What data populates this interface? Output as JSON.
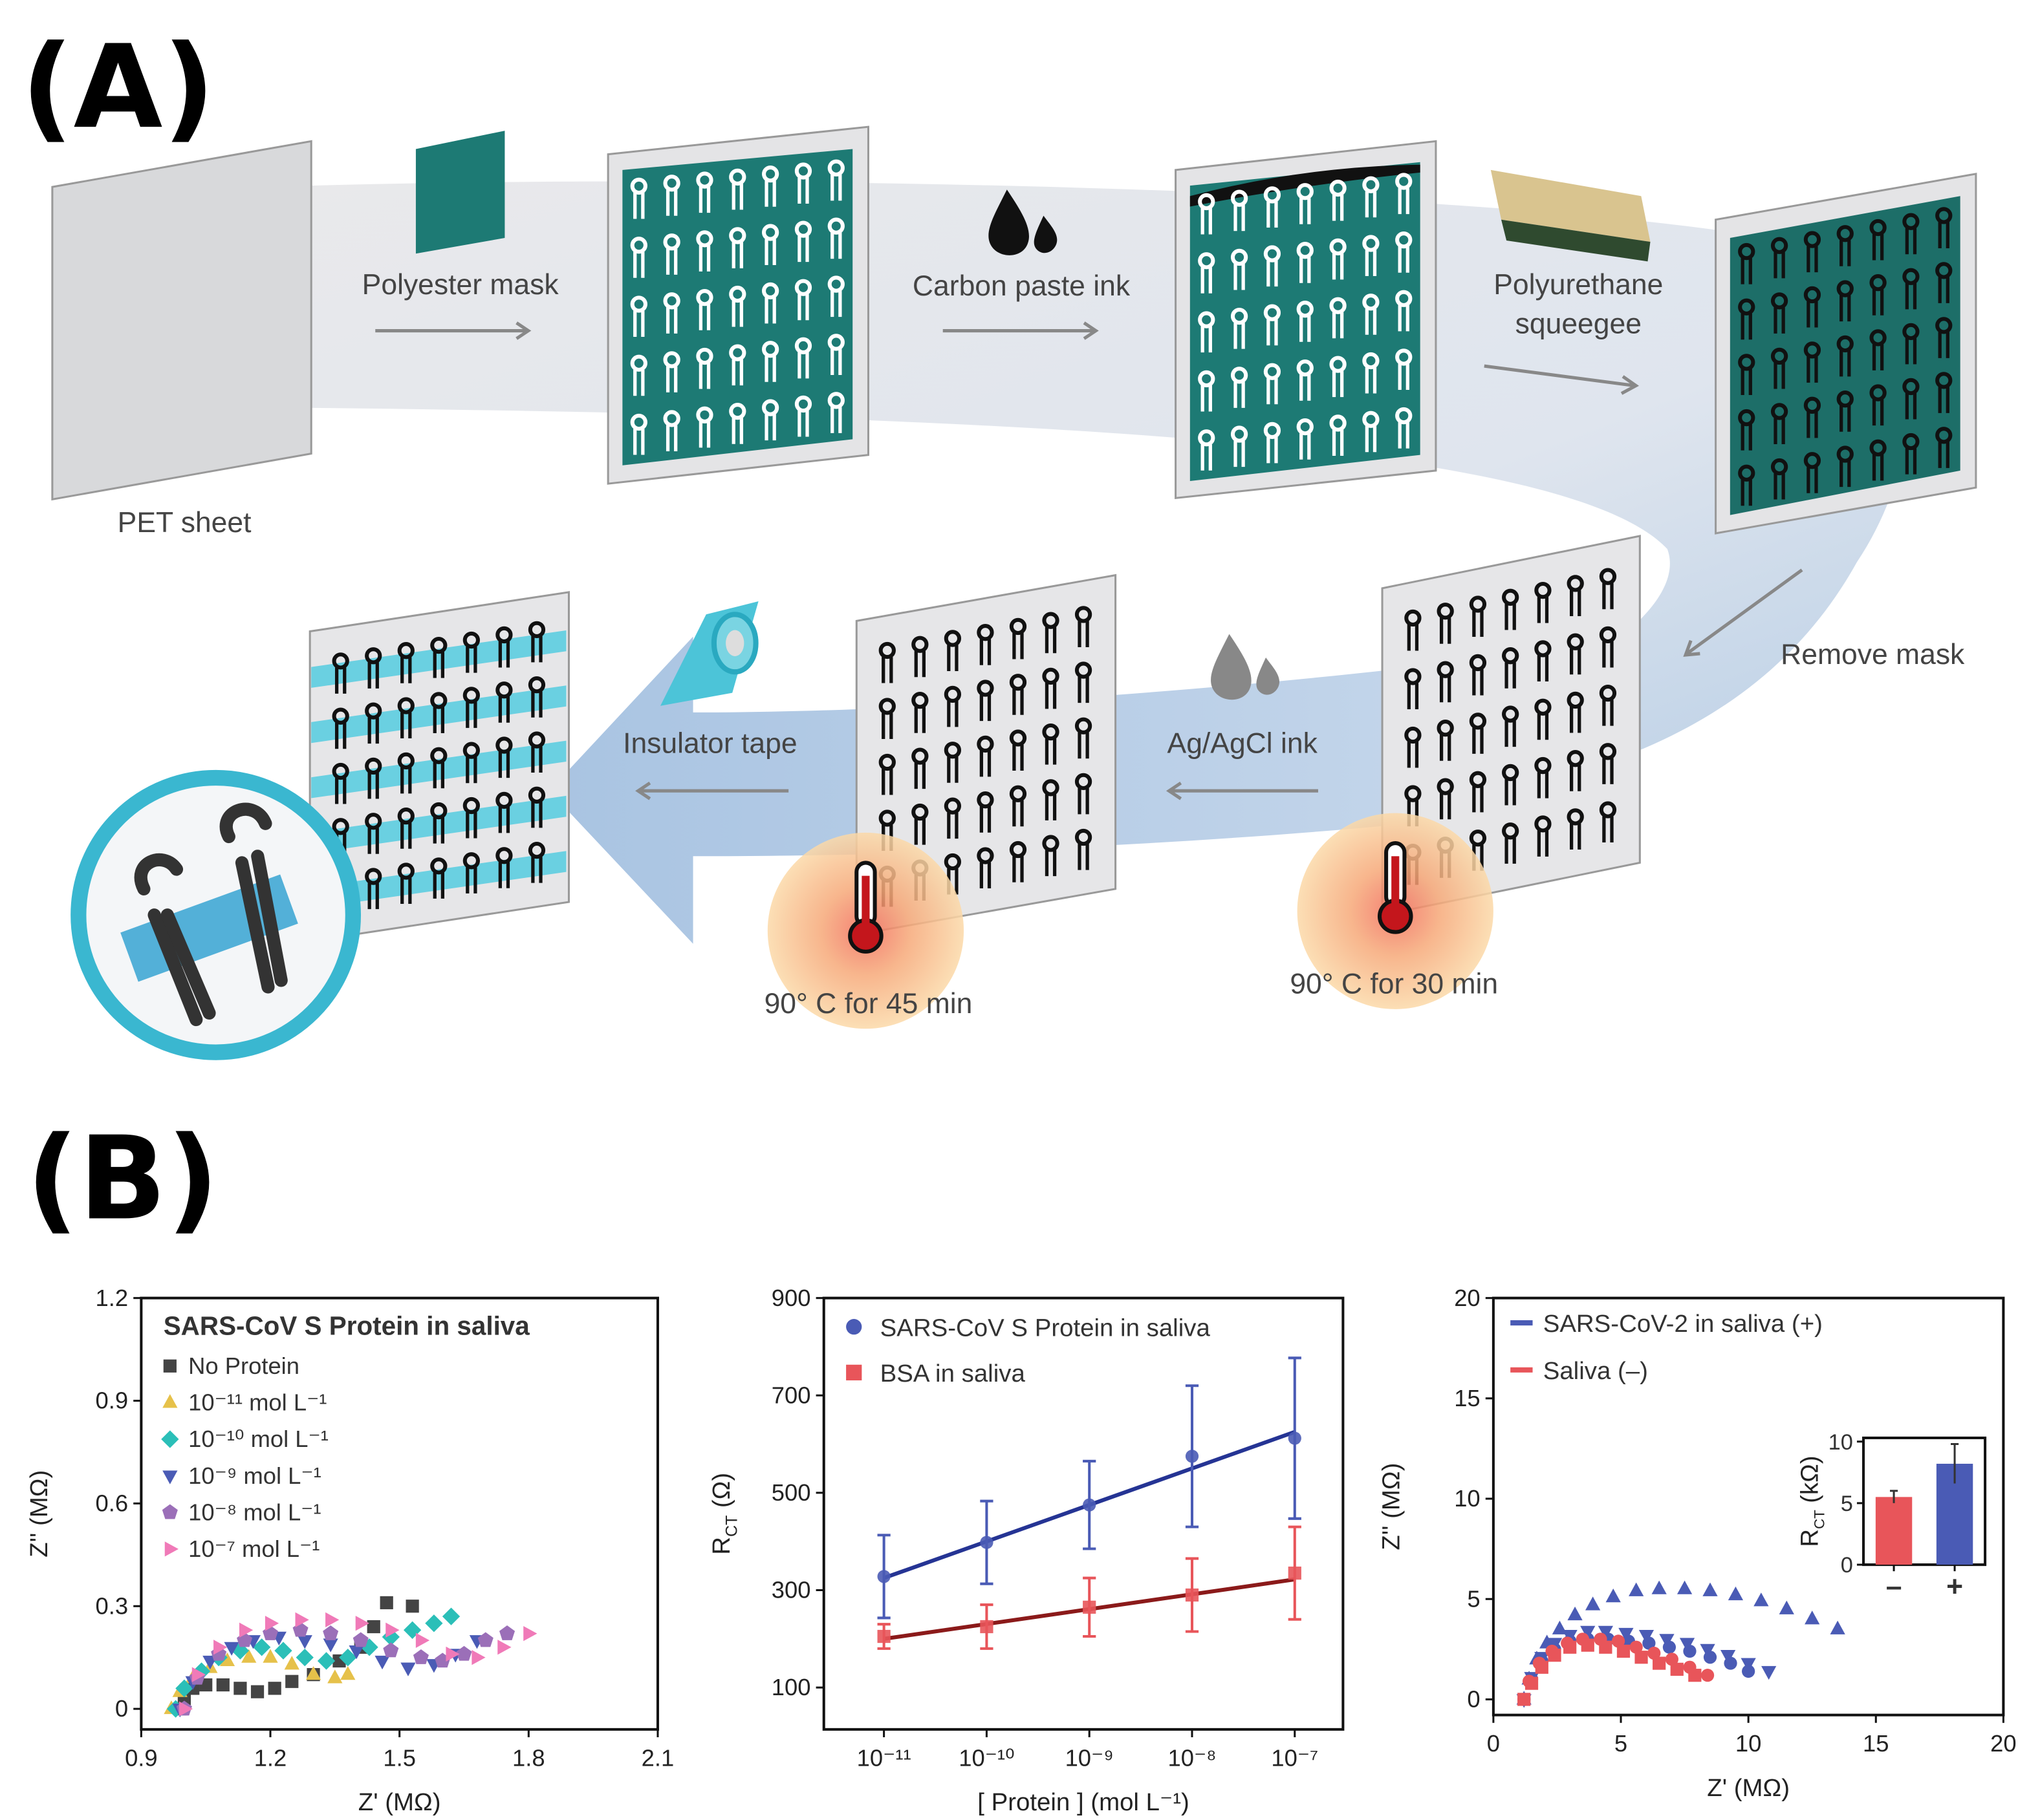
{
  "panel_labels": [
    "(A)",
    "(B)"
  ],
  "diagram": {
    "steps": {
      "pet_sheet": "PET sheet",
      "polyester_mask": "Polyester mask",
      "carbon_ink": "Carbon paste ink",
      "squeegee": [
        "Polyurethane",
        "squeegee"
      ],
      "remove_mask": "Remove mask",
      "agcl_ink": "Ag/AgCl ink",
      "insulator_tape": "Insulator tape",
      "cure_30": "90° C for 30 min",
      "cure_45": "90° C for 45 min"
    }
  },
  "chart_data": [
    {
      "type": "scatter",
      "xlabel": "Z' (MΩ)",
      "ylabel": "Z'' (MΩ)",
      "legend_title": "SARS-CoV S Protein in saliva",
      "legend": "upper left",
      "xlim": [
        0.9,
        2.1
      ],
      "ylim": [
        -0.06,
        1.2
      ],
      "xticks": [
        0.9,
        1.2,
        1.5,
        1.8,
        2.1
      ],
      "yticks": [
        0,
        0.3,
        0.6,
        0.9,
        1.2
      ],
      "series": [
        {
          "name": "No Protein",
          "color": "#444444",
          "marker": "square",
          "x": [
            0.99,
            1.0,
            1.02,
            1.05,
            1.09,
            1.13,
            1.17,
            1.21,
            1.25,
            1.3,
            1.36,
            1.41,
            1.44,
            1.47,
            1.53
          ],
          "values": [
            0.0,
            0.03,
            0.06,
            0.07,
            0.07,
            0.06,
            0.05,
            0.06,
            0.08,
            0.1,
            0.14,
            0.18,
            0.24,
            0.31,
            0.3
          ]
        },
        {
          "name": "10⁻¹¹ mol L⁻¹",
          "color": "#e6c14a",
          "marker": "triangle",
          "x": [
            0.97,
            0.99,
            1.02,
            1.06,
            1.1,
            1.15,
            1.2,
            1.25,
            1.3,
            1.35,
            1.38
          ],
          "values": [
            0,
            0.05,
            0.09,
            0.12,
            0.14,
            0.15,
            0.15,
            0.13,
            0.1,
            0.09,
            0.1
          ]
        },
        {
          "name": "10⁻¹⁰ mol L⁻¹",
          "color": "#2bbfb8",
          "marker": "diamond",
          "x": [
            0.98,
            1.0,
            1.04,
            1.08,
            1.13,
            1.18,
            1.23,
            1.28,
            1.33,
            1.38,
            1.43,
            1.48,
            1.53,
            1.58,
            1.62
          ],
          "values": [
            0,
            0.06,
            0.11,
            0.15,
            0.17,
            0.18,
            0.17,
            0.15,
            0.14,
            0.15,
            0.18,
            0.21,
            0.23,
            0.25,
            0.27
          ]
        },
        {
          "name": "10⁻⁹  mol L⁻¹",
          "color": "#4a5bb5",
          "marker": "triangle-down",
          "x": [
            0.99,
            1.02,
            1.06,
            1.11,
            1.16,
            1.22,
            1.28,
            1.34,
            1.4,
            1.46,
            1.52,
            1.58,
            1.63,
            1.68
          ],
          "values": [
            0,
            0.08,
            0.14,
            0.18,
            0.2,
            0.21,
            0.2,
            0.19,
            0.17,
            0.14,
            0.12,
            0.13,
            0.16,
            0.2
          ]
        },
        {
          "name": "10⁻⁸  mol L⁻¹",
          "color": "#9b6fb8",
          "marker": "pentagon",
          "x": [
            1.0,
            1.03,
            1.08,
            1.14,
            1.2,
            1.27,
            1.34,
            1.41,
            1.48,
            1.55,
            1.6,
            1.65,
            1.7,
            1.75
          ],
          "values": [
            0,
            0.09,
            0.16,
            0.2,
            0.22,
            0.23,
            0.22,
            0.2,
            0.17,
            0.15,
            0.14,
            0.16,
            0.2,
            0.22
          ]
        },
        {
          "name": "10⁻⁷  mol L⁻¹",
          "color": "#f07ab8",
          "marker": "triangle-right",
          "x": [
            1.0,
            1.03,
            1.08,
            1.14,
            1.2,
            1.27,
            1.34,
            1.41,
            1.48,
            1.55,
            1.62,
            1.68,
            1.74,
            1.8
          ],
          "values": [
            0,
            0.1,
            0.18,
            0.23,
            0.25,
            0.26,
            0.26,
            0.25,
            0.23,
            0.2,
            0.16,
            0.15,
            0.18,
            0.22
          ]
        }
      ]
    },
    {
      "type": "scatter",
      "xscale": "log",
      "xlabel": "[ Protein ] (mol L⁻¹)",
      "ylabel": {
        "main": "R",
        "sub": "CT",
        "unit": "(Ω)"
      },
      "legend": "upper left",
      "xlim": [
        2.6e-12,
        2.95e-07
      ],
      "ylim": [
        14,
        900
      ],
      "xticks": [
        {
          "value": 1e-11,
          "label": "10⁻¹¹"
        },
        {
          "value": 1e-10,
          "label": "10⁻¹⁰"
        },
        {
          "value": 1e-09,
          "label": "10⁻⁹"
        },
        {
          "value": 1e-08,
          "label": "10⁻⁸"
        },
        {
          "value": 1e-07,
          "label": "10⁻⁷"
        }
      ],
      "yticks": [
        100,
        300,
        500,
        700,
        900
      ],
      "series": [
        {
          "name": "SARS-CoV S Protein in saliva",
          "color": "#4a5bb5",
          "marker": "circle",
          "x": [
            1e-11,
            1e-10,
            1e-09,
            1e-08,
            1e-07
          ],
          "values": [
            328,
            398,
            475,
            575,
            612
          ],
          "errors": [
            85,
            85,
            90,
            145,
            165
          ],
          "fit": {
            "x": [
              1e-11,
              1e-07
            ],
            "values": [
              325,
              625
            ],
            "color": "#253494"
          }
        },
        {
          "name": "BSA in saliva",
          "color": "#e8555a",
          "marker": "square",
          "x": [
            1e-11,
            1e-10,
            1e-09,
            1e-08,
            1e-07
          ],
          "values": [
            205,
            225,
            265,
            290,
            335
          ],
          "errors": [
            25,
            45,
            60,
            75,
            95
          ],
          "fit": {
            "x": [
              1e-11,
              1e-07
            ],
            "values": [
              200,
              322
            ],
            "color": "#8b1a1a"
          }
        }
      ]
    },
    {
      "type": "scatter",
      "xlabel": "Z' (MΩ)",
      "ylabel": "Z'' (MΩ)",
      "legend": "upper left",
      "xlim": [
        0,
        20
      ],
      "ylim": [
        -0.78,
        20
      ],
      "xticks": [
        0,
        5,
        10,
        15,
        20
      ],
      "yticks": [
        0,
        5,
        10,
        15,
        20
      ],
      "series": [
        {
          "name": "SARS-CoV-2 in saliva (+)",
          "color": "#4a5bb5",
          "marker": "triangle",
          "x": [
            1.2,
            1.4,
            1.7,
            2.1,
            2.6,
            3.2,
            3.9,
            4.7,
            5.6,
            6.5,
            7.5,
            8.5,
            9.5,
            10.5,
            11.5,
            12.5,
            13.5
          ],
          "values": [
            0,
            1,
            2,
            2.8,
            3.5,
            4.2,
            4.7,
            5.1,
            5.4,
            5.5,
            5.5,
            5.4,
            5.2,
            4.9,
            4.5,
            4.0,
            3.5
          ]
        },
        {
          "color": "#4a5bb5",
          "marker": "triangle-down",
          "x": [
            1.2,
            1.5,
            1.9,
            2.4,
            3,
            3.7,
            4.4,
            5.2,
            6,
            6.8,
            7.6,
            8.4,
            9.2,
            10,
            10.8
          ],
          "values": [
            0,
            1.1,
            2.1,
            2.8,
            3.2,
            3.4,
            3.4,
            3.3,
            3.2,
            3.0,
            2.8,
            2.5,
            2.2,
            1.8,
            1.4
          ]
        },
        {
          "color": "#4a5bb5",
          "marker": "circle",
          "x": [
            1.2,
            1.5,
            1.9,
            2.4,
            3,
            3.7,
            4.5,
            5.3,
            6.1,
            6.9,
            7.7,
            8.5,
            9.3,
            10
          ],
          "values": [
            0,
            1,
            1.9,
            2.5,
            2.9,
            3.0,
            3.0,
            2.9,
            2.8,
            2.6,
            2.4,
            2.1,
            1.8,
            1.4
          ]
        },
        {
          "name": "Saliva (–)",
          "color": "#e8555a",
          "marker": "circle",
          "x": [
            1.2,
            1.4,
            1.8,
            2.3,
            2.9,
            3.5,
            4.2,
            4.9,
            5.6,
            6.3,
            7,
            7.7,
            8.4
          ],
          "values": [
            0,
            0.9,
            1.8,
            2.4,
            2.8,
            3.0,
            3.0,
            2.9,
            2.6,
            2.3,
            2.0,
            1.6,
            1.2
          ]
        },
        {
          "color": "#e8555a",
          "marker": "square",
          "x": [
            1.2,
            1.5,
            1.9,
            2.4,
            3,
            3.7,
            4.4,
            5.1,
            5.8,
            6.5,
            7.2,
            7.9
          ],
          "values": [
            0,
            0.8,
            1.6,
            2.2,
            2.6,
            2.7,
            2.6,
            2.4,
            2.1,
            1.8,
            1.5,
            1.2
          ]
        }
      ],
      "inset": {
        "type": "bar",
        "ylabel": {
          "main": "R",
          "sub": "CT",
          "unit": "(kΩ)"
        },
        "categories": [
          "–",
          "+"
        ],
        "values": [
          5.5,
          8.2
        ],
        "errors": [
          0.5,
          1.6
        ],
        "colors": [
          "#e8555a",
          "#4a5bb5"
        ],
        "ylim": [
          0,
          10.3
        ],
        "yticks": [
          0,
          5,
          10
        ]
      }
    }
  ]
}
